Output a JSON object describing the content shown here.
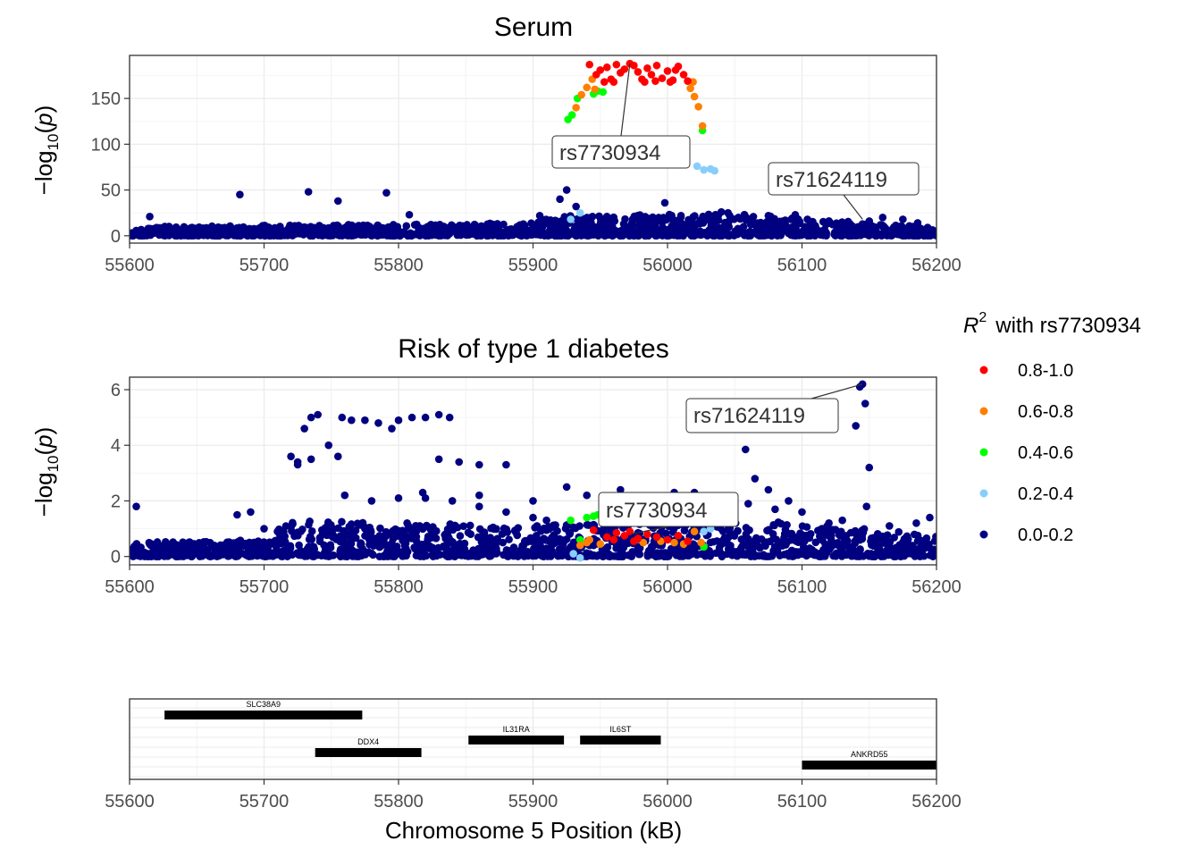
{
  "colors": {
    "r2_0_8_1_0": "#ff0000",
    "r2_0_6_0_8": "#ff8000",
    "r2_0_4_0_6": "#00ff00",
    "r2_0_2_0_4": "#87cefa",
    "r2_0_0_0_2": "#000080",
    "gene_bar": "#000000",
    "grid": "#ebebeb"
  },
  "legend": {
    "title_symbol": "R",
    "title_sup": "2",
    "title_rest": "with rs7730934",
    "items": [
      {
        "label": "0.8-1.0",
        "color": "#ff0000"
      },
      {
        "label": "0.6-0.8",
        "color": "#ff8000"
      },
      {
        "label": "0.4-0.6",
        "color": "#00ff00"
      },
      {
        "label": "0.2-0.4",
        "color": "#87cefa"
      },
      {
        "label": "0.0-0.2",
        "color": "#000080"
      }
    ]
  },
  "chart_data": [
    {
      "type": "scatter",
      "title": "Serum",
      "ylabel": "−log10(p)",
      "xlim": [
        55600,
        56200
      ],
      "ylim": [
        -8,
        197
      ],
      "xticks": [
        "55600",
        "55700",
        "55800",
        "55900",
        "56000",
        "56100",
        "56200"
      ],
      "yticks": [
        "0",
        "50",
        "100",
        "150"
      ],
      "annotations": [
        {
          "text": "rs7730934",
          "x": 55972,
          "y": 188
        },
        {
          "text": "rs71624119",
          "x": 56145,
          "y": 18
        }
      ],
      "points": {
        "r2_0_8_1_0": [
          [
            55942,
            187
          ],
          [
            55947,
            176
          ],
          [
            55950,
            181
          ],
          [
            55955,
            184
          ],
          [
            55958,
            171
          ],
          [
            55962,
            187
          ],
          [
            55965,
            178
          ],
          [
            55968,
            182
          ],
          [
            55972,
            188
          ],
          [
            55975,
            186
          ],
          [
            55978,
            179
          ],
          [
            55981,
            171
          ],
          [
            55985,
            183
          ],
          [
            55988,
            176
          ],
          [
            55992,
            186
          ],
          [
            55996,
            172
          ],
          [
            56000,
            180
          ],
          [
            56004,
            170
          ],
          [
            56008,
            185
          ],
          [
            56012,
            176
          ],
          [
            56015,
            169
          ],
          [
            55953,
            168
          ],
          [
            55960,
            168
          ],
          [
            55983,
            168
          ],
          [
            55991,
            169
          ],
          [
            56002,
            168
          ],
          [
            56006,
            181
          ]
        ],
        "r2_0_6_0_8": [
          [
            55932,
            140
          ],
          [
            55936,
            154
          ],
          [
            55940,
            162
          ],
          [
            55944,
            171
          ],
          [
            56017,
            161
          ],
          [
            56020,
            152
          ],
          [
            56023,
            141
          ],
          [
            56026,
            120
          ],
          [
            56019,
            168
          ],
          [
            55946,
            160
          ]
        ],
        "r2_0_4_0_6": [
          [
            55926,
            127
          ],
          [
            55929,
            132
          ],
          [
            55933,
            150
          ],
          [
            55945,
            155
          ],
          [
            55948,
            158
          ],
          [
            55952,
            157
          ],
          [
            56026,
            115
          ]
        ],
        "r2_0_2_0_4": [
          [
            55928,
            18
          ],
          [
            55935,
            25
          ],
          [
            56022,
            76
          ],
          [
            56027,
            72
          ],
          [
            56032,
            73
          ],
          [
            56035,
            71
          ]
        ],
        "r2_0_0_0_2": [
          [
            55615,
            21
          ],
          [
            55682,
            45
          ],
          [
            55733,
            48
          ],
          [
            55755,
            38
          ],
          [
            55791,
            47
          ],
          [
            55808,
            23
          ],
          [
            55920,
            40
          ],
          [
            55925,
            50
          ],
          [
            55932,
            32
          ],
          [
            55998,
            36
          ],
          [
            56040,
            26
          ],
          [
            56045,
            25
          ],
          [
            56075,
            22
          ],
          [
            56095,
            23
          ],
          [
            56150,
            16
          ],
          [
            56160,
            20
          ],
          [
            56175,
            18
          ],
          [
            56186,
            14
          ],
          [
            55905,
            22
          ],
          [
            55960,
            20
          ],
          [
            55975,
            18
          ],
          [
            56010,
            22
          ],
          [
            56030,
            20
          ]
        ],
        "dense_band": [
          [
            55600,
            0,
            10
          ],
          [
            55900,
            0,
            14
          ],
          [
            55920,
            0,
            22
          ],
          [
            56050,
            0,
            24
          ],
          [
            56200,
            0,
            9
          ]
        ]
      }
    },
    {
      "type": "scatter",
      "title": "Risk of type 1 diabetes",
      "ylabel": "−log10(p)",
      "xlim": [
        55600,
        56200
      ],
      "ylim": [
        -0.3,
        6.45
      ],
      "xticks": [
        "55600",
        "55700",
        "55800",
        "55900",
        "56000",
        "56100",
        "56200"
      ],
      "yticks": [
        "0",
        "2",
        "4",
        "6"
      ],
      "annotations": [
        {
          "text": "rs71624119",
          "x": 56145,
          "y": 6.2
        },
        {
          "text": "rs7730934",
          "x": 55972,
          "y": 0.8
        }
      ],
      "points": {
        "r2_0_8_1_0": [
          [
            55945,
            0.95
          ],
          [
            55955,
            0.7
          ],
          [
            55962,
            0.85
          ],
          [
            55968,
            0.75
          ],
          [
            55972,
            0.9
          ],
          [
            55978,
            0.65
          ],
          [
            55985,
            0.8
          ],
          [
            55992,
            0.7
          ],
          [
            56000,
            0.6
          ],
          [
            56008,
            0.75
          ],
          [
            56015,
            0.55
          ],
          [
            55960,
            0.6
          ],
          [
            55975,
            0.55
          ]
        ],
        "r2_0_6_0_8": [
          [
            55935,
            0.4
          ],
          [
            55940,
            0.5
          ],
          [
            55950,
            0.45
          ],
          [
            55982,
            0.5
          ],
          [
            55995,
            0.55
          ],
          [
            56005,
            0.5
          ],
          [
            56012,
            0.45
          ],
          [
            56020,
            0.9
          ],
          [
            56025,
            0.5
          ],
          [
            55942,
            0.6
          ]
        ],
        "r2_0_4_0_6": [
          [
            55928,
            1.3
          ],
          [
            55935,
            0.6
          ],
          [
            55940,
            1.4
          ],
          [
            55945,
            1.45
          ],
          [
            55948,
            1.5
          ],
          [
            56027,
            0.35
          ]
        ],
        "r2_0_2_0_4": [
          [
            55930,
            0.1
          ],
          [
            55935,
            -0.05
          ],
          [
            56027,
            0.9
          ],
          [
            56032,
            1.0
          ]
        ],
        "r2_0_0_0_2": [
          [
            55720,
            3.6
          ],
          [
            55725,
            3.3
          ],
          [
            55730,
            4.6
          ],
          [
            55735,
            5.0
          ],
          [
            55740,
            5.1
          ],
          [
            55748,
            4.0
          ],
          [
            55755,
            3.6
          ],
          [
            55758,
            5.0
          ],
          [
            55765,
            4.9
          ],
          [
            55775,
            4.9
          ],
          [
            55785,
            4.8
          ],
          [
            55795,
            4.6
          ],
          [
            55800,
            4.9
          ],
          [
            55810,
            5.0
          ],
          [
            55820,
            5.0
          ],
          [
            55830,
            5.1
          ],
          [
            55838,
            5.0
          ],
          [
            55725,
            3.4
          ],
          [
            55735,
            3.5
          ],
          [
            55750,
            1.0
          ],
          [
            55830,
            3.5
          ],
          [
            55845,
            3.4
          ],
          [
            55860,
            3.3
          ],
          [
            55880,
            3.3
          ],
          [
            55925,
            2.5
          ],
          [
            55965,
            2.4
          ],
          [
            55985,
            2.0
          ],
          [
            56005,
            2.3
          ],
          [
            56020,
            2.3
          ],
          [
            56058,
            3.85
          ],
          [
            56065,
            2.8
          ],
          [
            56075,
            2.4
          ],
          [
            56090,
            2.0
          ],
          [
            56140,
            4.7
          ],
          [
            56143,
            6.1
          ],
          [
            56145,
            6.2
          ],
          [
            56147,
            5.5
          ],
          [
            56150,
            3.2
          ],
          [
            56148,
            1.8
          ],
          [
            56130,
            1.3
          ],
          [
            56185,
            1.2
          ],
          [
            55605,
            1.8
          ],
          [
            55680,
            1.5
          ],
          [
            55690,
            1.6
          ],
          [
            55818,
            2.3
          ],
          [
            55860,
            2.2
          ],
          [
            55900,
            2.0
          ],
          [
            55940,
            2.2
          ],
          [
            56045,
            2.0
          ],
          [
            56100,
            1.6
          ],
          [
            56195,
            1.4
          ],
          [
            55700,
            1.0
          ],
          [
            55710,
            0.9
          ],
          [
            55760,
            2.2
          ],
          [
            55780,
            2.0
          ],
          [
            55800,
            2.1
          ],
          [
            55820,
            2.1
          ],
          [
            55840,
            2.0
          ],
          [
            55860,
            1.8
          ],
          [
            55880,
            1.6
          ],
          [
            55900,
            1.4
          ],
          [
            55910,
            1.3
          ],
          [
            56040,
            1.8
          ],
          [
            56060,
            1.9
          ],
          [
            56080,
            1.7
          ],
          [
            56120,
            1.2
          ],
          [
            56165,
            1.1
          ]
        ],
        "dense_band": [
          [
            55600,
            0,
            0.5
          ],
          [
            55700,
            0,
            0.6
          ],
          [
            55720,
            0,
            1.3
          ],
          [
            55900,
            0,
            1.1
          ],
          [
            56040,
            0,
            1.4
          ],
          [
            56200,
            0,
            0.8
          ]
        ]
      }
    }
  ],
  "genes": {
    "xlabel": "Chromosome 5 Position (kB)",
    "xticks": [
      "55600",
      "55700",
      "55800",
      "55900",
      "56000",
      "56100",
      "56200"
    ],
    "xlim": [
      55600,
      56200
    ],
    "items": [
      {
        "name": "SLC38A9",
        "start": 55626,
        "end": 55773,
        "row": 0
      },
      {
        "name": "DDX4",
        "start": 55738,
        "end": 55817,
        "row": 2
      },
      {
        "name": "IL31RA",
        "start": 55852,
        "end": 55923,
        "row": 1
      },
      {
        "name": "IL6ST",
        "start": 55935,
        "end": 55995,
        "row": 1
      },
      {
        "name": "ANKRD55",
        "start": 56100,
        "end": 56200,
        "row": 3
      }
    ]
  }
}
